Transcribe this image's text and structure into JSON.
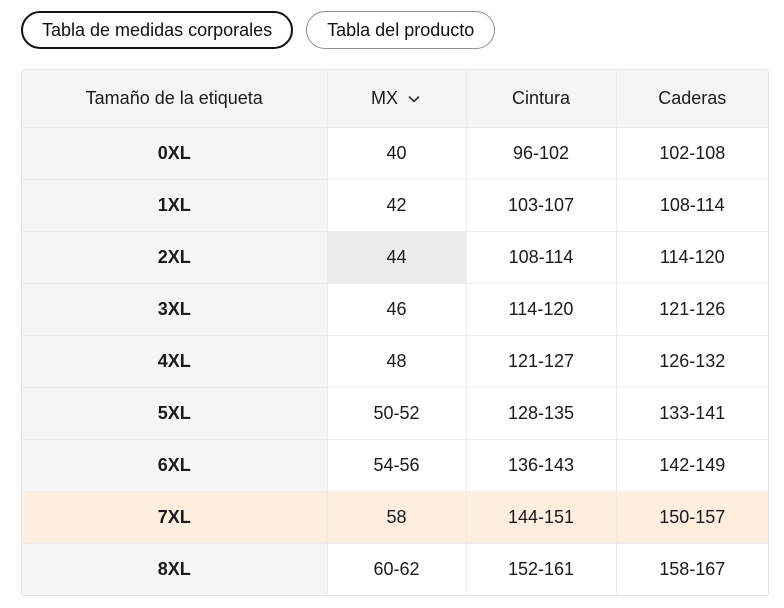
{
  "tabs": [
    {
      "label": "Tabla de medidas corporales",
      "active": true
    },
    {
      "label": "Tabla del producto",
      "active": false
    }
  ],
  "table": {
    "headers": {
      "label": "Tamaño de la etiqueta",
      "size_system": "MX",
      "waist": "Cintura",
      "hips": "Caderas"
    },
    "rows": [
      {
        "label": "0XL",
        "mx": "40",
        "waist": "96-102",
        "hips": "102-108"
      },
      {
        "label": "1XL",
        "mx": "42",
        "waist": "103-107",
        "hips": "108-114"
      },
      {
        "label": "2XL",
        "mx": "44",
        "waist": "108-114",
        "hips": "114-120"
      },
      {
        "label": "3XL",
        "mx": "46",
        "waist": "114-120",
        "hips": "121-126"
      },
      {
        "label": "4XL",
        "mx": "48",
        "waist": "121-127",
        "hips": "126-132"
      },
      {
        "label": "5XL",
        "mx": "50-52",
        "waist": "128-135",
        "hips": "133-141"
      },
      {
        "label": "6XL",
        "mx": "54-56",
        "waist": "136-143",
        "hips": "142-149"
      },
      {
        "label": "7XL",
        "mx": "58",
        "waist": "144-151",
        "hips": "150-157"
      },
      {
        "label": "8XL",
        "mx": "60-62",
        "waist": "152-161",
        "hips": "158-167"
      }
    ],
    "highlighted_row": "7XL",
    "selected_cell": {
      "row": "2XL",
      "column": "mx"
    }
  },
  "icons": {
    "size_system_dropdown": "chevron-down-icon"
  },
  "colors": {
    "highlight_row": "#fdeee0",
    "selected_cell": "#ececec",
    "header_bg": "#f5f5f5"
  }
}
